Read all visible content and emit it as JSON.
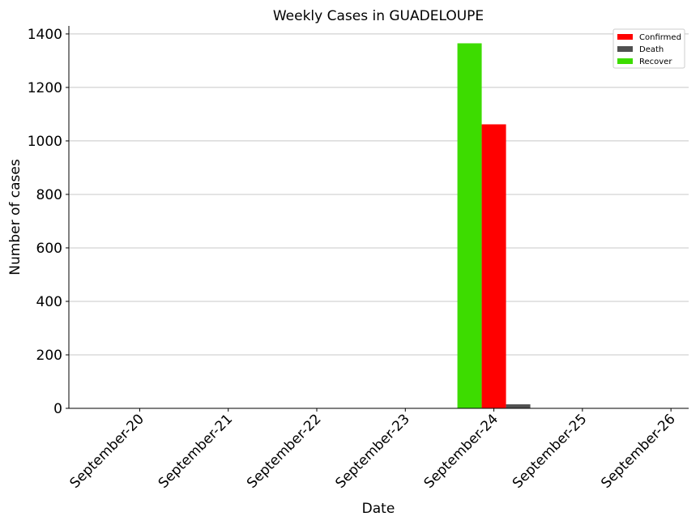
{
  "chart_data": {
    "type": "bar",
    "title": "Weekly Cases in GUADELOUPE",
    "xlabel": "Date",
    "ylabel": "Number of cases",
    "categories": [
      "September-20",
      "September-21",
      "September-22",
      "September-23",
      "September-24",
      "September-25",
      "September-26"
    ],
    "series": [
      {
        "name": "Recover",
        "color": "#3ddc00",
        "values": [
          0,
          0,
          0,
          0,
          1365,
          0,
          0
        ]
      },
      {
        "name": "Confirmed",
        "color": "#ff0000",
        "values": [
          0,
          0,
          0,
          0,
          1062,
          0,
          0
        ]
      },
      {
        "name": "Death",
        "color": "#505050",
        "values": [
          0,
          0,
          0,
          0,
          15,
          0,
          0
        ]
      }
    ],
    "legend_order": [
      "Confirmed",
      "Death",
      "Recover"
    ],
    "ylim": [
      0,
      1430
    ],
    "yticks": [
      0,
      200,
      400,
      600,
      800,
      1000,
      1200,
      1400
    ],
    "grid": "horizontal",
    "legend_position": "top-right"
  }
}
